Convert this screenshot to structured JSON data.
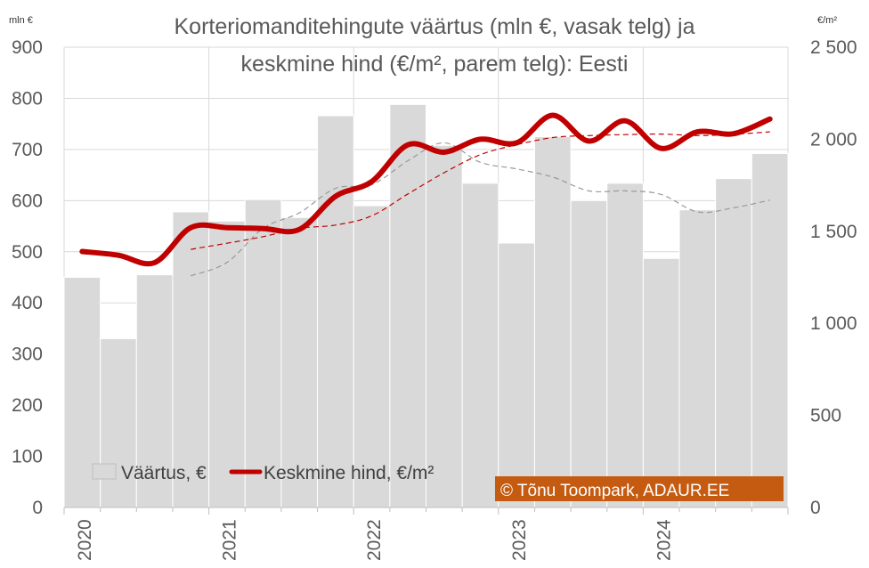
{
  "chart_data": {
    "type": "bar+line",
    "title_lines": [
      "Korteriomanditehingute väärtus (mln €, vasak telg) ja",
      "keskmine hind (€/m², parem telg): Eesti"
    ],
    "y_left_unit": "mln €",
    "y_right_unit": "€/m²",
    "y_left_range": [
      0,
      900
    ],
    "y_left_ticks": [
      "0",
      "100",
      "200",
      "300",
      "400",
      "500",
      "600",
      "700",
      "800",
      "900"
    ],
    "y_right_range": [
      0,
      2500
    ],
    "y_right_ticks": [
      "0",
      "500",
      "1 000",
      "1 500",
      "2 000",
      "2 500"
    ],
    "x_year_labels": [
      "2020",
      "2021",
      "2022",
      "2023",
      "2024"
    ],
    "bar_series": {
      "name": "Väärtus, €",
      "color": "#d9d9d9",
      "values": [
        450,
        330,
        455,
        578,
        560,
        602,
        567,
        766,
        590,
        788,
        708,
        634,
        517,
        725,
        600,
        634,
        487,
        582,
        643,
        692
      ]
    },
    "line_series": {
      "name": "Keskmine hind, €/m²",
      "color": "#c00000",
      "values": [
        1390,
        1370,
        1330,
        1520,
        1520,
        1515,
        1510,
        1690,
        1770,
        1970,
        1930,
        2000,
        1980,
        2130,
        1990,
        2100,
        1950,
        2040,
        2030,
        2110
      ]
    },
    "trend_bar_values": [
      null,
      null,
      null,
      453,
      479,
      546,
      576,
      624,
      631,
      678,
      713,
      675,
      662,
      646,
      619,
      619,
      612,
      578,
      586,
      601
    ],
    "trend_line_values": [
      null,
      null,
      null,
      1402,
      1435,
      1471,
      1516,
      1534,
      1584,
      1703,
      1818,
      1916,
      1970,
      2009,
      2020,
      2025,
      2028,
      2020,
      2027,
      2040
    ],
    "trend_color_bar": "#999999",
    "trend_color_line": "#c00000",
    "credit": "© Tõnu Toompark, ADAUR.EE",
    "credit_bg": "#c55a11",
    "grid": true,
    "legend_position": "bottom-left"
  }
}
